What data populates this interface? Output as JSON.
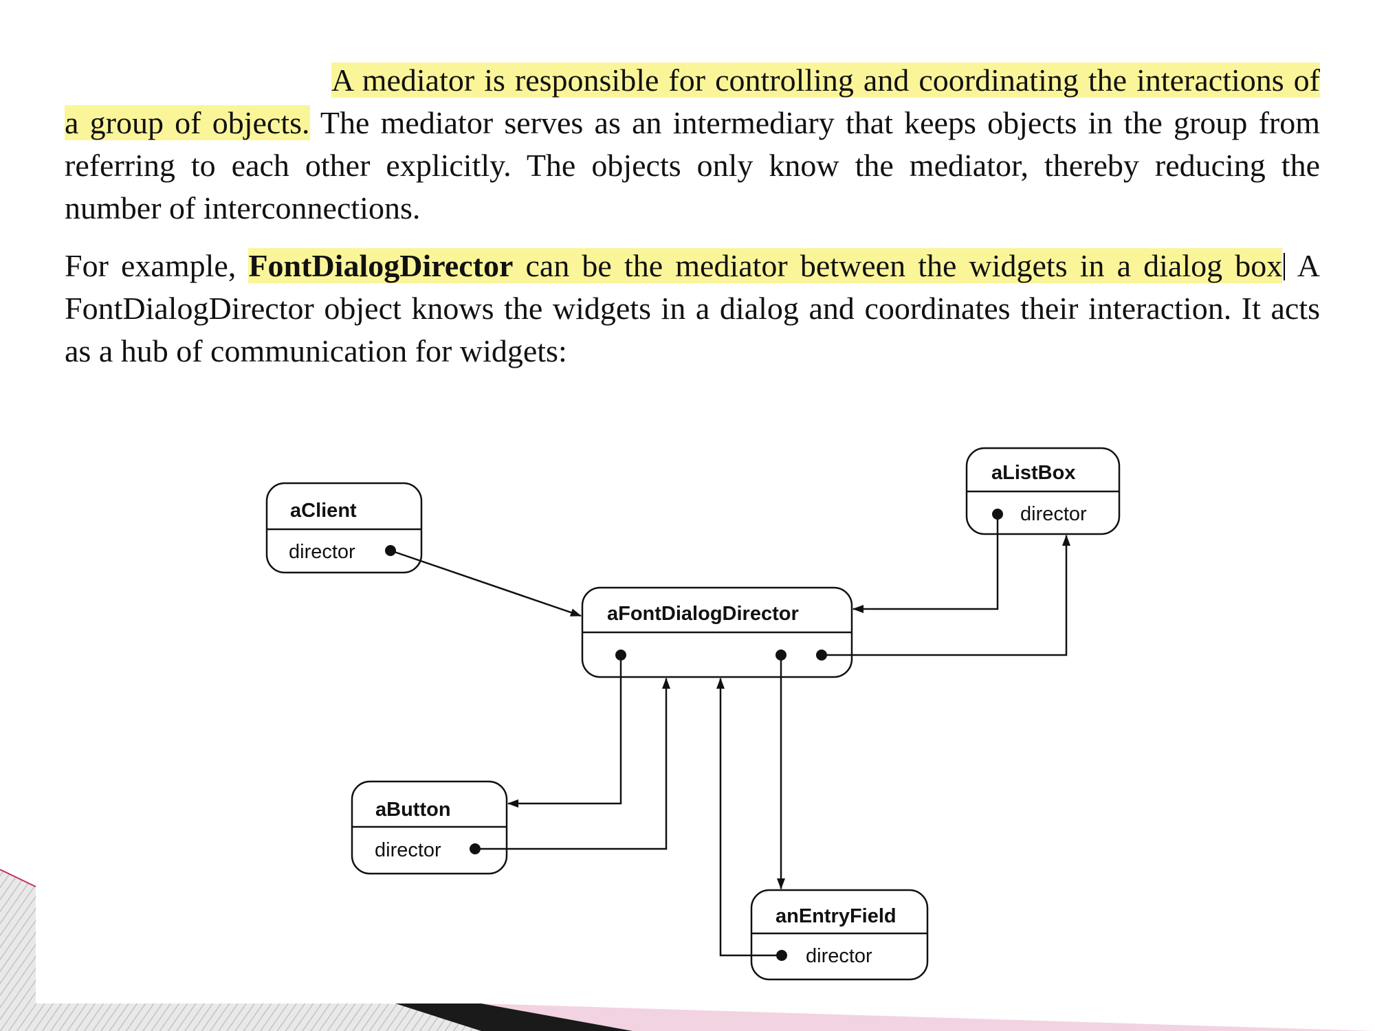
{
  "paragraph1": {
    "highlighted": "A mediator is responsible for controlling and coordinating the interactions of a group of objects.",
    "rest": " The mediator serves as an intermediary that keeps objects in the group from referring to each other explicitly. The objects only know the mediator, thereby reducing the number of interconnections."
  },
  "paragraph2": {
    "lead": "For example, ",
    "highlighted_bold": "FontDialogDirector",
    "highlighted_rest": " can be the mediator between the widgets in a dialog box",
    "rest": " A FontDialogDirector object knows the widgets in a dialog and coordinates their interaction. It acts as a hub of communication for widgets:"
  },
  "diagram": {
    "client": {
      "name": "aClient",
      "field": "director"
    },
    "listbox": {
      "name": "aListBox",
      "field": "director"
    },
    "director": {
      "name": "aFontDialogDirector"
    },
    "button": {
      "name": "aButton",
      "field": "director"
    },
    "entry": {
      "name": "anEntryField",
      "field": "director"
    }
  },
  "colors": {
    "highlight": "#fbf59a",
    "accent_pink": "#f2d3e2",
    "accent_dark": "#1a1a1a",
    "stripe_gray": "#c9c9c9"
  }
}
